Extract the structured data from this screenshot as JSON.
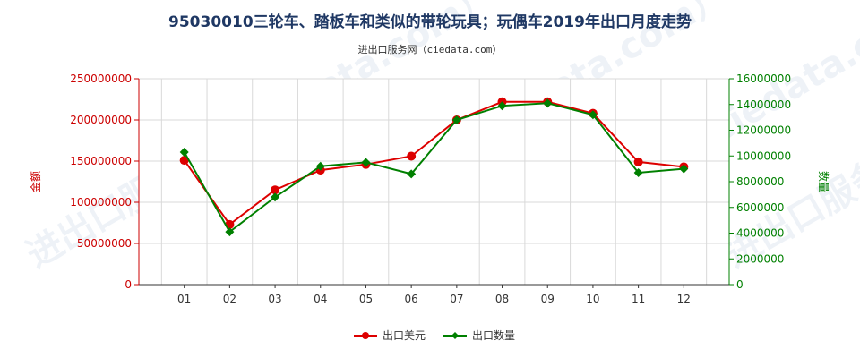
{
  "chart_data": {
    "type": "line",
    "title": "95030010三轮车、踏板车和类似的带轮玩具；玩偶车2019年出口月度走势",
    "subtitle": "进出口服务网（ciedata.com）",
    "categories": [
      "01",
      "02",
      "03",
      "04",
      "05",
      "06",
      "07",
      "08",
      "09",
      "10",
      "11",
      "12"
    ],
    "y_left": {
      "label": "金额",
      "min": 0,
      "max": 250000000,
      "ticks": [
        0,
        50000000,
        100000000,
        150000000,
        200000000,
        250000000
      ],
      "color": "#cc0000"
    },
    "y_right": {
      "label": "数量",
      "min": 0,
      "max": 16000000,
      "ticks": [
        0,
        2000000,
        4000000,
        6000000,
        8000000,
        10000000,
        12000000,
        14000000,
        16000000
      ],
      "color": "#008000"
    },
    "grid": true,
    "legend_position": "bottom-center",
    "series": [
      {
        "name": "出口美元",
        "axis": "left",
        "color": "#dd0000",
        "marker": "circle",
        "values": [
          151000000,
          73000000,
          115000000,
          139000000,
          146000000,
          156000000,
          200000000,
          222000000,
          222000000,
          208000000,
          149000000,
          143000000
        ]
      },
      {
        "name": "出口数量",
        "axis": "right",
        "color": "#008000",
        "marker": "diamond",
        "values": [
          10300000,
          4100000,
          6800000,
          9200000,
          9500000,
          8600000,
          12800000,
          13900000,
          14100000,
          13200000,
          8700000,
          9000000
        ]
      }
    ]
  }
}
